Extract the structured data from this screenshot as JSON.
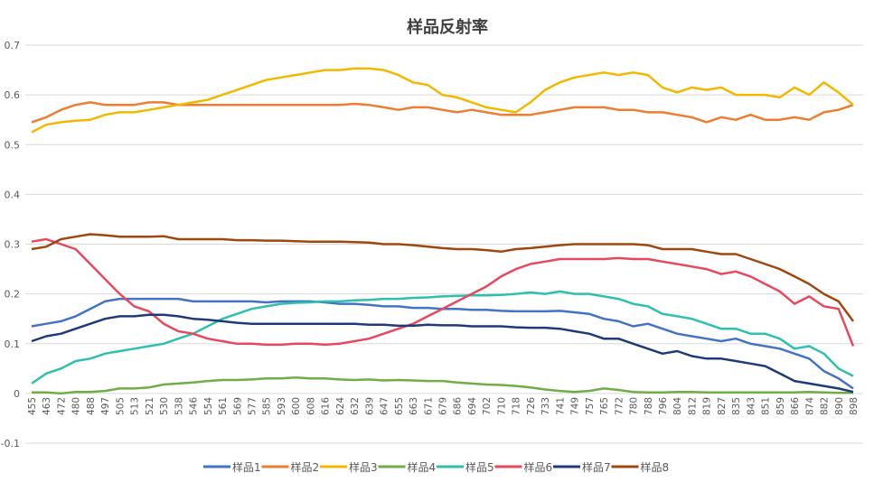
{
  "chart_data": {
    "type": "line",
    "title": "样品反射率",
    "xlabel": "",
    "ylabel": "",
    "ylim": [
      -0.1,
      0.7
    ],
    "yticks": [
      "-0.1",
      "0",
      "0.1",
      "0.2",
      "0.3",
      "0.4",
      "0.5",
      "0.6",
      "0.7"
    ],
    "grid": true,
    "legend_position": "bottom",
    "categories": [
      "455",
      "463",
      "472",
      "480",
      "488",
      "497",
      "505",
      "513",
      "521",
      "530",
      "538",
      "546",
      "554",
      "561",
      "569",
      "577",
      "585",
      "593",
      "600",
      "608",
      "616",
      "624",
      "632",
      "639",
      "647",
      "655",
      "663",
      "671",
      "679",
      "686",
      "694",
      "702",
      "710",
      "718",
      "726",
      "733",
      "741",
      "749",
      "757",
      "765",
      "772",
      "780",
      "788",
      "796",
      "804",
      "812",
      "819",
      "827",
      "835",
      "843",
      "851",
      "859",
      "866",
      "874",
      "882",
      "890",
      "898"
    ],
    "series": [
      {
        "name": "样品1",
        "color": "#4472C4",
        "values": [
          0.135,
          0.14,
          0.145,
          0.155,
          0.17,
          0.185,
          0.19,
          0.19,
          0.19,
          0.19,
          0.19,
          0.185,
          0.185,
          0.185,
          0.185,
          0.185,
          0.183,
          0.185,
          0.185,
          0.185,
          0.183,
          0.18,
          0.18,
          0.178,
          0.175,
          0.175,
          0.172,
          0.172,
          0.17,
          0.17,
          0.168,
          0.168,
          0.166,
          0.165,
          0.165,
          0.165,
          0.166,
          0.163,
          0.16,
          0.15,
          0.145,
          0.135,
          0.14,
          0.13,
          0.12,
          0.115,
          0.11,
          0.105,
          0.11,
          0.1,
          0.095,
          0.09,
          0.08,
          0.07,
          0.045,
          0.03,
          0.01
        ]
      },
      {
        "name": "样品2",
        "color": "#ED7D31",
        "values": [
          0.545,
          0.555,
          0.57,
          0.58,
          0.585,
          0.58,
          0.58,
          0.58,
          0.585,
          0.585,
          0.58,
          0.58,
          0.58,
          0.58,
          0.58,
          0.58,
          0.58,
          0.58,
          0.58,
          0.58,
          0.58,
          0.58,
          0.582,
          0.58,
          0.575,
          0.57,
          0.575,
          0.575,
          0.57,
          0.565,
          0.57,
          0.565,
          0.56,
          0.56,
          0.56,
          0.565,
          0.57,
          0.575,
          0.575,
          0.575,
          0.57,
          0.57,
          0.565,
          0.565,
          0.56,
          0.555,
          0.545,
          0.555,
          0.55,
          0.56,
          0.55,
          0.55,
          0.555,
          0.55,
          0.565,
          0.57,
          0.58
        ]
      },
      {
        "name": "样品3",
        "color": "#F2B800",
        "values": [
          0.525,
          0.54,
          0.545,
          0.548,
          0.55,
          0.56,
          0.565,
          0.565,
          0.57,
          0.575,
          0.58,
          0.585,
          0.59,
          0.6,
          0.61,
          0.62,
          0.63,
          0.635,
          0.64,
          0.645,
          0.65,
          0.65,
          0.653,
          0.653,
          0.65,
          0.64,
          0.625,
          0.62,
          0.6,
          0.595,
          0.585,
          0.575,
          0.57,
          0.565,
          0.585,
          0.61,
          0.625,
          0.635,
          0.64,
          0.645,
          0.64,
          0.645,
          0.64,
          0.615,
          0.605,
          0.615,
          0.61,
          0.615,
          0.6,
          0.6,
          0.6,
          0.595,
          0.615,
          0.6,
          0.625,
          0.605,
          0.58
        ]
      },
      {
        "name": "样品4",
        "color": "#70AD47",
        "values": [
          0.002,
          0.002,
          0.0,
          0.003,
          0.003,
          0.005,
          0.01,
          0.01,
          0.012,
          0.018,
          0.02,
          0.022,
          0.025,
          0.027,
          0.027,
          0.028,
          0.03,
          0.03,
          0.032,
          0.03,
          0.03,
          0.028,
          0.027,
          0.028,
          0.026,
          0.027,
          0.026,
          0.025,
          0.025,
          0.022,
          0.02,
          0.018,
          0.017,
          0.015,
          0.012,
          0.008,
          0.005,
          0.003,
          0.005,
          0.01,
          0.007,
          0.003,
          0.002,
          0.002,
          0.003,
          0.003,
          0.002,
          0.002,
          0.002,
          0.002,
          0.002,
          0.002,
          0.002,
          0.003,
          0.002,
          0.001,
          0.001
        ]
      },
      {
        "name": "样品5",
        "color": "#2EC0AE",
        "values": [
          0.02,
          0.04,
          0.05,
          0.065,
          0.07,
          0.08,
          0.085,
          0.09,
          0.095,
          0.1,
          0.11,
          0.12,
          0.135,
          0.15,
          0.16,
          0.17,
          0.175,
          0.18,
          0.182,
          0.183,
          0.185,
          0.185,
          0.187,
          0.188,
          0.19,
          0.19,
          0.192,
          0.193,
          0.195,
          0.196,
          0.197,
          0.197,
          0.198,
          0.2,
          0.203,
          0.2,
          0.205,
          0.2,
          0.2,
          0.195,
          0.19,
          0.18,
          0.175,
          0.16,
          0.155,
          0.15,
          0.14,
          0.13,
          0.13,
          0.12,
          0.12,
          0.11,
          0.09,
          0.095,
          0.08,
          0.05,
          0.035
        ]
      },
      {
        "name": "样品6",
        "color": "#E8485E",
        "values": [
          0.305,
          0.31,
          0.3,
          0.29,
          0.26,
          0.23,
          0.2,
          0.175,
          0.165,
          0.14,
          0.125,
          0.12,
          0.11,
          0.105,
          0.1,
          0.1,
          0.098,
          0.098,
          0.1,
          0.1,
          0.098,
          0.1,
          0.105,
          0.11,
          0.12,
          0.13,
          0.14,
          0.155,
          0.17,
          0.185,
          0.2,
          0.215,
          0.235,
          0.25,
          0.26,
          0.265,
          0.27,
          0.27,
          0.27,
          0.27,
          0.272,
          0.27,
          0.27,
          0.265,
          0.26,
          0.255,
          0.25,
          0.24,
          0.245,
          0.235,
          0.22,
          0.205,
          0.18,
          0.195,
          0.175,
          0.17,
          0.095
        ]
      },
      {
        "name": "样品7",
        "color": "#1F3A78",
        "values": [
          0.105,
          0.115,
          0.12,
          0.13,
          0.14,
          0.15,
          0.155,
          0.155,
          0.158,
          0.158,
          0.155,
          0.15,
          0.148,
          0.145,
          0.142,
          0.14,
          0.14,
          0.14,
          0.14,
          0.14,
          0.14,
          0.14,
          0.14,
          0.138,
          0.138,
          0.136,
          0.136,
          0.138,
          0.137,
          0.137,
          0.135,
          0.135,
          0.135,
          0.133,
          0.132,
          0.132,
          0.13,
          0.125,
          0.12,
          0.11,
          0.11,
          0.1,
          0.09,
          0.08,
          0.085,
          0.075,
          0.07,
          0.07,
          0.065,
          0.06,
          0.055,
          0.04,
          0.025,
          0.02,
          0.015,
          0.01,
          0.003
        ]
      },
      {
        "name": "样品8",
        "color": "#9E480E",
        "values": [
          0.29,
          0.295,
          0.31,
          0.315,
          0.32,
          0.318,
          0.315,
          0.315,
          0.315,
          0.316,
          0.31,
          0.31,
          0.31,
          0.31,
          0.308,
          0.308,
          0.307,
          0.307,
          0.306,
          0.305,
          0.305,
          0.305,
          0.304,
          0.303,
          0.3,
          0.3,
          0.298,
          0.295,
          0.292,
          0.29,
          0.29,
          0.288,
          0.285,
          0.29,
          0.292,
          0.295,
          0.298,
          0.3,
          0.3,
          0.3,
          0.3,
          0.3,
          0.298,
          0.29,
          0.29,
          0.29,
          0.285,
          0.28,
          0.28,
          0.27,
          0.26,
          0.25,
          0.235,
          0.22,
          0.2,
          0.185,
          0.145
        ]
      }
    ]
  }
}
